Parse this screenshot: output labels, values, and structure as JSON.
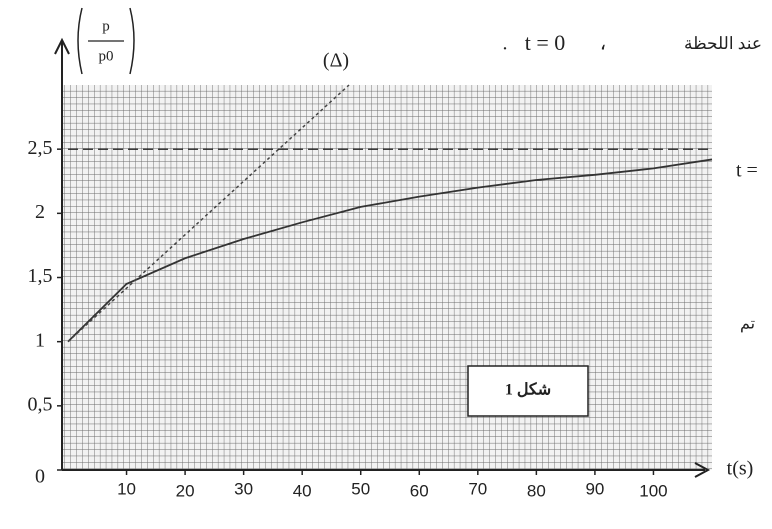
{
  "chart_data": {
    "type": "line",
    "x_label": "t(s)",
    "y_label_num": "p",
    "y_label_den": "p0",
    "xlim": [
      0,
      110
    ],
    "ylim": [
      0,
      3
    ],
    "xticks": [
      10,
      20,
      30,
      40,
      50,
      60,
      70,
      80,
      90,
      100
    ],
    "yticks": [
      0,
      {
        "value": 0.5,
        "label": "0,5"
      },
      1,
      {
        "value": 1.5,
        "label": "1,5"
      },
      2,
      {
        "value": 2.5,
        "label": "2,5"
      }
    ],
    "series": [
      {
        "color": "#333333",
        "style": "solid",
        "x": [
          0,
          10,
          20,
          30,
          40,
          50,
          60,
          70,
          80,
          90,
          100,
          110
        ],
        "values": [
          1,
          1.45,
          1.65,
          1.8,
          1.93,
          2.05,
          2.13,
          2.2,
          2.26,
          2.3,
          2.35,
          2.42
        ]
      },
      {
        "color": "#444444",
        "style": "dotted",
        "x": [
          0,
          48
        ],
        "values": [
          1,
          3
        ]
      },
      {
        "color": "#222222",
        "style": "dashed",
        "x": [
          0,
          110
        ],
        "values": [
          2.5,
          2.5
        ]
      }
    ],
    "annotations": [
      "(Δ)",
      "شكل 1"
    ],
    "side_text": [
      "عند اللحظة",
      "t = 0",
      "،",
      ".",
      "t =",
      "تم"
    ]
  }
}
